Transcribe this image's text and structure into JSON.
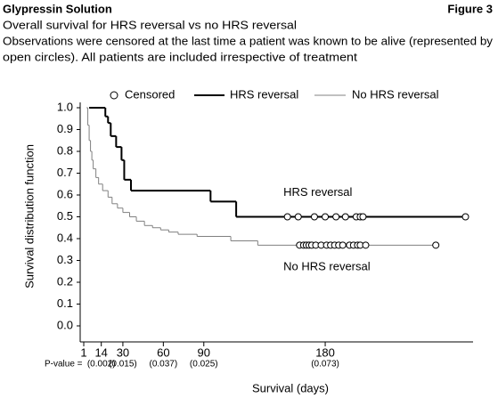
{
  "header": {
    "title": "Glypressin Solution",
    "figure": "Figure 3"
  },
  "chart_data": {
    "type": "step",
    "subtitle": "Overall survival for HRS reversal vs no HRS reversal",
    "note_lines": [
      "Observations were censored at the last time a patient was known to be alive (represented by",
      "open circles). All patients are included irrespective of treatment"
    ],
    "x_label": "Survival (days)",
    "y_label": "Survival distribution function",
    "censored_label": "Censored",
    "xlim": [
      0,
      290
    ],
    "xticks": [
      1,
      14,
      30,
      60,
      90,
      180
    ],
    "ylim": [
      0,
      1
    ],
    "yticks": [
      {
        "value": 0,
        "label": "0.0"
      },
      0.1,
      0.2,
      0.3,
      0.4,
      0.5,
      0.6,
      0.7,
      0.8,
      0.9,
      {
        "value": 1,
        "label": "1.0"
      }
    ],
    "pvalue_label": "P-value =",
    "pvalues": [
      {
        "x": 14,
        "label": "(0.002)"
      },
      {
        "x": 30,
        "label": "(0.015)"
      },
      {
        "x": 60,
        "label": "(0.037)"
      },
      {
        "x": 90,
        "label": "(0.025)"
      },
      {
        "x": 180,
        "label": "(0.073)"
      }
    ],
    "annotations": [
      {
        "text": "HRS reversal",
        "x": 149,
        "y": 0.61
      },
      {
        "text": "No HRS reversal",
        "x": 149,
        "y": 0.27
      }
    ],
    "series": [
      {
        "name": "HRS reversal",
        "color": "#000000",
        "x": [
          5,
          17,
          19,
          21,
          25,
          29,
          31,
          36,
          95,
          114,
          284
        ],
        "values": [
          1.0,
          0.96,
          0.93,
          0.87,
          0.82,
          0.76,
          0.67,
          0.62,
          0.57,
          0.5,
          0.5
        ],
        "censored_x": [
          152,
          160,
          172,
          180,
          188,
          195,
          203,
          206,
          208,
          284
        ],
        "censored_values": [
          0.5,
          0.5,
          0.5,
          0.5,
          0.5,
          0.5,
          0.5,
          0.5,
          0.5,
          0.5
        ]
      },
      {
        "name": "No HRS reversal",
        "color": "#808080",
        "x": [
          3,
          4,
          5,
          6,
          7,
          8,
          10,
          12,
          15,
          19,
          22,
          26,
          30,
          35,
          40,
          46,
          52,
          58,
          64,
          71,
          85,
          110,
          130,
          262
        ],
        "values": [
          1.0,
          0.92,
          0.85,
          0.8,
          0.76,
          0.72,
          0.68,
          0.65,
          0.62,
          0.59,
          0.56,
          0.54,
          0.52,
          0.5,
          0.48,
          0.46,
          0.45,
          0.44,
          0.43,
          0.42,
          0.41,
          0.39,
          0.37,
          0.37
        ],
        "censored_x": [
          161,
          164,
          166,
          168,
          170,
          173,
          177,
          181,
          184,
          187,
          190,
          193,
          198,
          201,
          204,
          206,
          210,
          262
        ],
        "censored_values": [
          0.37,
          0.37,
          0.37,
          0.37,
          0.37,
          0.37,
          0.37,
          0.37,
          0.37,
          0.37,
          0.37,
          0.37,
          0.37,
          0.37,
          0.37,
          0.37,
          0.37,
          0.37
        ]
      }
    ]
  }
}
